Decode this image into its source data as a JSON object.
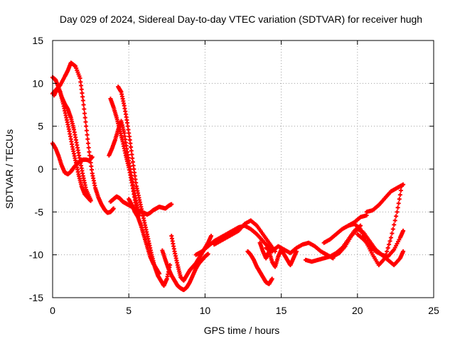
{
  "chart_data": {
    "type": "scatter",
    "title": "Day 029 of 2024, Sidereal Day-to-day VTEC variation (SDTVAR) for receiver hugh",
    "xlabel": "GPS time / hours",
    "ylabel": "SDTVAR / TECUs",
    "xlim": [
      0,
      25
    ],
    "ylim": [
      -15,
      15
    ],
    "xticks": [
      0,
      5,
      10,
      15,
      20,
      25
    ],
    "yticks": [
      -15,
      -10,
      -5,
      0,
      5,
      10,
      15
    ],
    "grid": true,
    "marker": "plus",
    "color": "#ff0000",
    "series": [
      {
        "x": [
          0.0,
          0.2,
          0.4,
          0.6,
          0.8,
          1.0,
          1.2,
          1.4,
          1.6,
          1.8,
          2.0,
          2.2,
          2.5
        ],
        "y": [
          10.7,
          10.4,
          9.5,
          8.4,
          7.6,
          7.0,
          6.0,
          4.6,
          2.8,
          1.0,
          -0.8,
          -2.4,
          -3.6
        ]
      },
      {
        "x": [
          0.0,
          0.2,
          0.5,
          0.8,
          1.0,
          1.2,
          1.5,
          1.8,
          2.0,
          2.2,
          2.4,
          2.6,
          2.8,
          3.0,
          3.2,
          3.4,
          3.6,
          3.8,
          4.0
        ],
        "y": [
          8.8,
          9.2,
          9.8,
          10.8,
          11.5,
          12.4,
          12.0,
          10.6,
          8.0,
          5.0,
          2.0,
          -0.5,
          -2.2,
          -3.3,
          -4.1,
          -4.7,
          -5.1,
          -5.0,
          -4.6
        ]
      },
      {
        "x": [
          0.0,
          0.2,
          0.4,
          0.6,
          0.8,
          1.0,
          1.2,
          1.4,
          1.6,
          1.8,
          2.0,
          2.2,
          2.4,
          2.6
        ],
        "y": [
          3.0,
          2.4,
          1.5,
          0.4,
          -0.4,
          -0.6,
          -0.3,
          0.2,
          0.6,
          0.9,
          1.1,
          1.1,
          1.0,
          1.4
        ]
      },
      {
        "x": [
          0.1,
          0.3,
          0.5,
          0.7,
          0.9,
          1.1,
          1.3,
          1.5,
          1.7,
          1.9,
          2.1,
          2.3,
          2.5
        ],
        "y": [
          8.6,
          9.4,
          9.0,
          7.6,
          6.0,
          4.4,
          2.6,
          1.0,
          -0.6,
          -2.0,
          -2.9,
          -3.3,
          -3.7
        ]
      },
      {
        "x": [
          3.8,
          4.0,
          4.2,
          4.4,
          4.6,
          4.8,
          5.0,
          5.2,
          5.4,
          5.6,
          5.8,
          6.0,
          6.2,
          6.4,
          6.6,
          6.8,
          7.0,
          7.2,
          7.4,
          7.6,
          7.8
        ],
        "y": [
          -3.8,
          -3.5,
          -3.2,
          -3.4,
          -3.8,
          -4.0,
          -4.2,
          -4.4,
          -4.6,
          -4.8,
          -5.0,
          -5.1,
          -5.3,
          -5.1,
          -4.8,
          -4.6,
          -4.4,
          -4.5,
          -4.6,
          -4.3,
          -4.1
        ]
      },
      {
        "x": [
          3.8,
          4.0,
          4.2,
          4.4,
          4.6,
          4.8,
          5.0,
          5.2,
          5.4,
          5.6
        ],
        "y": [
          8.2,
          7.2,
          6.0,
          4.6,
          3.2,
          1.6,
          0.2,
          -1.6,
          -3.6,
          -5.4
        ]
      },
      {
        "x": [
          3.7,
          3.9,
          4.1,
          4.3,
          4.5,
          4.7,
          4.9,
          5.1,
          5.3,
          5.5,
          5.7
        ],
        "y": [
          1.6,
          2.4,
          3.4,
          4.6,
          5.6,
          4.2,
          2.0,
          0.0,
          -2.2,
          -4.0,
          -5.4
        ]
      },
      {
        "x": [
          4.3,
          4.5,
          4.7,
          4.9,
          5.1,
          5.3,
          5.5,
          5.7,
          5.9,
          6.1,
          6.3,
          6.5,
          6.7,
          6.9,
          7.1,
          7.3,
          7.5,
          7.7
        ],
        "y": [
          9.6,
          9.0,
          7.4,
          5.4,
          3.0,
          0.4,
          -2.0,
          -3.6,
          -5.2,
          -6.8,
          -8.4,
          -10.0,
          -11.4,
          -12.4,
          -13.0,
          -13.6,
          -12.8,
          -11.2
        ]
      },
      {
        "x": [
          5.0,
          5.2,
          5.4,
          5.6,
          5.8,
          6.0,
          6.2,
          6.4,
          6.6,
          6.8,
          7.0
        ],
        "y": [
          -3.5,
          -4.2,
          -5.0,
          -5.6,
          -6.6,
          -7.8,
          -9.0,
          -10.2,
          -11.0,
          -11.6,
          -12.2
        ]
      },
      {
        "x": [
          7.2,
          7.4,
          7.6,
          7.8,
          8.0,
          8.2,
          8.4,
          8.6,
          8.8,
          9.0,
          9.2,
          9.4,
          9.6,
          9.8,
          10.0,
          10.2
        ],
        "y": [
          -9.5,
          -10.6,
          -11.6,
          -12.4,
          -13.0,
          -13.6,
          -13.9,
          -14.1,
          -13.8,
          -13.2,
          -12.4,
          -11.6,
          -11.0,
          -10.6,
          -10.2,
          -9.9
        ]
      },
      {
        "x": [
          7.8,
          8.0,
          8.2,
          8.4,
          8.6,
          8.8,
          9.0,
          9.2,
          9.4,
          9.6,
          9.8,
          10.0,
          10.2,
          10.4
        ],
        "y": [
          -7.8,
          -9.6,
          -11.2,
          -12.6,
          -13.0,
          -12.4,
          -11.8,
          -11.4,
          -11.0,
          -10.4,
          -9.8,
          -9.2,
          -8.6,
          -7.8
        ]
      },
      {
        "x": [
          9.4,
          9.8,
          10.2,
          10.6,
          11.0,
          11.4,
          11.8,
          12.2,
          12.6,
          13.0,
          13.4,
          13.8,
          14.2
        ],
        "y": [
          -10.0,
          -9.6,
          -9.0,
          -8.4,
          -8.0,
          -7.6,
          -7.2,
          -6.8,
          -6.6,
          -7.0,
          -7.6,
          -8.4,
          -9.2
        ]
      },
      {
        "x": [
          10.6,
          11.0,
          11.4,
          11.8,
          12.2,
          12.6,
          13.0,
          13.4,
          13.8,
          14.2,
          14.6
        ],
        "y": [
          -8.8,
          -8.4,
          -8.0,
          -7.6,
          -7.2,
          -6.4,
          -6.0,
          -6.6,
          -7.6,
          -8.6,
          -9.6
        ]
      },
      {
        "x": [
          12.8,
          13.0,
          13.2,
          13.4,
          13.6,
          13.8,
          14.0,
          14.2,
          14.4
        ],
        "y": [
          -9.6,
          -10.0,
          -10.6,
          -11.4,
          -12.0,
          -12.6,
          -13.2,
          -13.4,
          -12.8
        ]
      },
      {
        "x": [
          13.6,
          13.8,
          14.0,
          14.2,
          14.4,
          14.6,
          14.8,
          15.0,
          15.2,
          15.4,
          15.6,
          15.8,
          16.0
        ],
        "y": [
          -8.6,
          -9.6,
          -10.4,
          -9.6,
          -10.8,
          -11.4,
          -10.2,
          -9.4,
          -10.0,
          -10.6,
          -11.2,
          -10.4,
          -9.6
        ]
      },
      {
        "x": [
          14.0,
          14.4,
          14.8,
          15.2,
          15.6,
          16.0,
          16.4,
          16.8,
          17.2,
          17.6,
          18.0,
          18.4
        ],
        "y": [
          -9.2,
          -9.6,
          -9.0,
          -9.4,
          -9.8,
          -9.2,
          -8.8,
          -8.6,
          -9.0,
          -9.6,
          -10.0,
          -10.4
        ]
      },
      {
        "x": [
          16.6,
          17.0,
          17.4,
          17.8,
          18.2,
          18.6,
          19.0,
          19.4,
          19.8,
          20.2
        ],
        "y": [
          -10.6,
          -10.8,
          -10.6,
          -10.4,
          -10.2,
          -9.8,
          -9.2,
          -8.2,
          -7.2,
          -6.6
        ]
      },
      {
        "x": [
          17.8,
          18.2,
          18.6,
          19.0,
          19.4,
          19.8,
          20.2,
          20.6
        ],
        "y": [
          -8.6,
          -8.2,
          -7.6,
          -7.0,
          -6.6,
          -6.2,
          -5.6,
          -5.4
        ]
      },
      {
        "x": [
          18.4,
          18.8,
          19.2,
          19.6,
          20.0,
          20.4,
          20.8,
          21.2,
          21.6,
          22.0,
          22.4,
          22.8,
          23.0
        ],
        "y": [
          -10.2,
          -9.8,
          -9.0,
          -7.8,
          -7.0,
          -7.4,
          -8.4,
          -9.4,
          -10.0,
          -10.6,
          -11.2,
          -10.4,
          -9.6
        ]
      },
      {
        "x": [
          20.0,
          20.4,
          20.8,
          21.2,
          21.6,
          22.0,
          22.4,
          22.8,
          23.0
        ],
        "y": [
          -7.6,
          -8.2,
          -9.0,
          -9.6,
          -10.0,
          -10.2,
          -9.4,
          -8.0,
          -7.2
        ]
      },
      {
        "x": [
          20.6,
          21.0,
          21.4,
          21.8,
          22.2,
          22.6,
          23.0
        ],
        "y": [
          -5.0,
          -4.8,
          -4.2,
          -3.4,
          -2.6,
          -2.2,
          -1.8
        ]
      },
      {
        "x": [
          19.4,
          19.8,
          20.2,
          20.6,
          21.0,
          21.4,
          21.8,
          22.2,
          22.6,
          22.9
        ],
        "y": [
          -6.6,
          -6.4,
          -7.0,
          -8.6,
          -10.0,
          -11.2,
          -10.4,
          -8.0,
          -5.0,
          -2.0
        ]
      }
    ]
  }
}
